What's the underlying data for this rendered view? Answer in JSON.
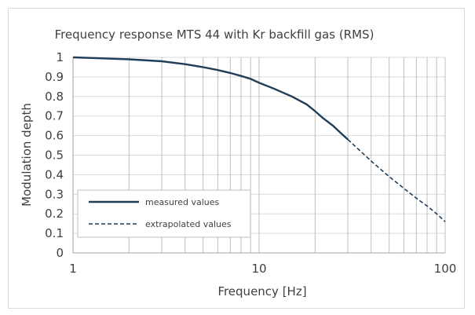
{
  "chart_data": {
    "type": "line",
    "title": "Frequency response MTS 44 with Kr backfill gas (RMS)",
    "xlabel": "Frequency [Hz]",
    "ylabel": "Modulation depth",
    "xscale": "log",
    "xlim": [
      1,
      100
    ],
    "ylim": [
      0,
      1
    ],
    "x_ticks": [
      "1",
      "10",
      "100"
    ],
    "y_ticks": [
      "0",
      "0.1",
      "0.2",
      "0.3",
      "0.4",
      "0.5",
      "0.6",
      "0.7",
      "0.8",
      "0.9",
      "1"
    ],
    "grid": true,
    "legend_position": "bottom-left",
    "series": [
      {
        "name": "measured values",
        "style": "solid",
        "color": "#1f3e5a",
        "points": [
          [
            1,
            1.0
          ],
          [
            2,
            0.99
          ],
          [
            3,
            0.98
          ],
          [
            4,
            0.965
          ],
          [
            5,
            0.95
          ],
          [
            6,
            0.935
          ],
          [
            7,
            0.92
          ],
          [
            8,
            0.905
          ],
          [
            9,
            0.89
          ],
          [
            10,
            0.87
          ],
          [
            12,
            0.84
          ],
          [
            15,
            0.8
          ],
          [
            18,
            0.76
          ],
          [
            20,
            0.725
          ],
          [
            22,
            0.69
          ],
          [
            25,
            0.65
          ],
          [
            27,
            0.62
          ],
          [
            30,
            0.58
          ]
        ]
      },
      {
        "name": "extrapolated values",
        "style": "dashed",
        "color": "#1f3e5a",
        "points": [
          [
            30,
            0.58
          ],
          [
            40,
            0.47
          ],
          [
            50,
            0.39
          ],
          [
            60,
            0.33
          ],
          [
            70,
            0.28
          ],
          [
            80,
            0.24
          ],
          [
            90,
            0.2
          ],
          [
            100,
            0.16
          ]
        ]
      }
    ]
  }
}
